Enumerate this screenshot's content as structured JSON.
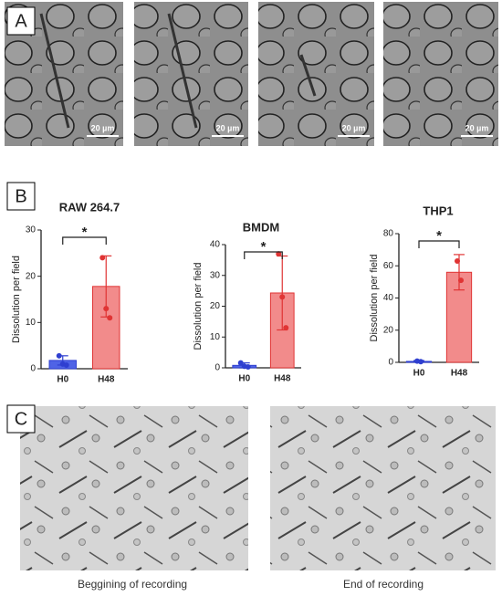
{
  "panels": {
    "a": {
      "label": "A",
      "scale_bars": [
        "20 µm",
        "20 µm",
        "20 µm",
        "20 µm"
      ]
    },
    "b": {
      "label": "B"
    },
    "c": {
      "label": "C",
      "captions": [
        "Beggining of recording",
        "End of recording"
      ]
    }
  },
  "chart_data": [
    {
      "type": "bar",
      "title": "RAW 264.7",
      "y_label": "Dissolution per field",
      "categories": [
        "H0",
        "H48"
      ],
      "values": [
        1.8,
        17.8
      ],
      "errors": [
        1.0,
        6.6
      ],
      "points": [
        [
          2.8,
          1.0,
          0.8
        ],
        [
          24.0,
          13.0,
          11.0
        ]
      ],
      "colors": [
        "#4f63e6",
        "#f28b8b"
      ],
      "point_colors": [
        "#2f3fd0",
        "#e03434"
      ],
      "ylim": [
        0,
        30
      ],
      "yticks": [
        0,
        10,
        20,
        30
      ],
      "annotation": "*"
    },
    {
      "type": "bar",
      "title": "BMDM",
      "y_label": "Dissolution per field",
      "categories": [
        "H0",
        "H48"
      ],
      "values": [
        0.8,
        24.3
      ],
      "errors": [
        0.8,
        12.0
      ],
      "points": [
        [
          1.6,
          0.5,
          0.3
        ],
        [
          37.0,
          23.0,
          13.0
        ]
      ],
      "colors": [
        "#4f63e6",
        "#f28b8b"
      ],
      "point_colors": [
        "#2f3fd0",
        "#e03434"
      ],
      "ylim": [
        0,
        40
      ],
      "yticks": [
        0,
        10,
        20,
        30,
        40
      ],
      "annotation": "*"
    },
    {
      "type": "bar",
      "title": "THP1",
      "y_label": "Dissolution per field",
      "categories": [
        "H0",
        "H48"
      ],
      "values": [
        0.6,
        56.0
      ],
      "errors": [
        0.5,
        11.0
      ],
      "points": [
        [
          0.8,
          0.4
        ],
        [
          63.0,
          51.0
        ]
      ],
      "colors": [
        "#4f63e6",
        "#f28b8b"
      ],
      "point_colors": [
        "#2f3fd0",
        "#e03434"
      ],
      "ylim": [
        0,
        80
      ],
      "yticks": [
        0,
        20,
        40,
        60,
        80
      ],
      "annotation": "*"
    }
  ]
}
